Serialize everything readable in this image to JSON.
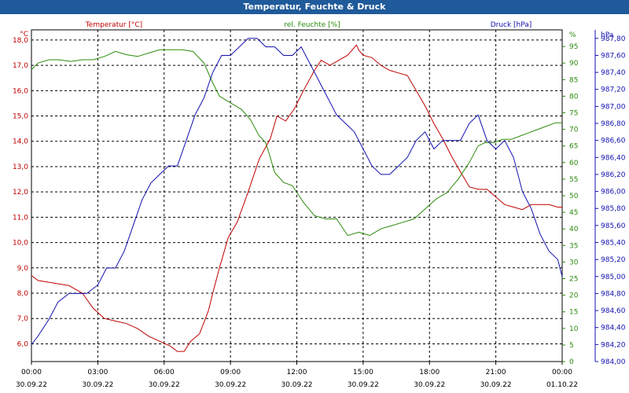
{
  "chart_data": {
    "type": "line",
    "title": "Temperatur, Feuchte & Druck",
    "x": [
      "00:00",
      "03:00",
      "06:00",
      "09:00",
      "12:00",
      "15:00",
      "18:00",
      "21:00",
      "00:00"
    ],
    "x_dates": [
      "30.09.22",
      "30.09.22",
      "30.09.22",
      "30.09.22",
      "30.09.22",
      "30.09.22",
      "30.09.22",
      "30.09.22",
      "01.10.22"
    ],
    "grid": true,
    "axes": {
      "temperature": {
        "label": "Temperatur [°C]",
        "unit": "°C",
        "color": "#c00000",
        "ylim": [
          5.3,
          18.4
        ],
        "ticks": [
          "18,0",
          "17,0",
          "16,0",
          "15,0",
          "14,0",
          "13,0",
          "12,0",
          "11,0",
          "10,0",
          "9,0",
          "8,0",
          "7,0",
          "6,0"
        ],
        "tick_values": [
          18,
          17,
          16,
          15,
          14,
          13,
          12,
          11,
          10,
          9,
          8,
          7,
          6
        ]
      },
      "humidity": {
        "label": "rel. Feuchte [%]",
        "unit": "%",
        "color": "#2a8a0a",
        "ylim": [
          0,
          100
        ],
        "ticks": [
          "95",
          "90",
          "85",
          "80",
          "75",
          "70",
          "65",
          "60",
          "55",
          "50",
          "45",
          "40",
          "35",
          "30",
          "25",
          "20",
          "15",
          "10",
          "5",
          "0"
        ],
        "tick_values": [
          95,
          90,
          85,
          80,
          75,
          70,
          65,
          60,
          55,
          50,
          45,
          40,
          35,
          30,
          25,
          20,
          15,
          10,
          5,
          0
        ]
      },
      "pressure": {
        "label": "Druck [hPa]",
        "unit": "hPa",
        "color": "#1010b0",
        "ylim": [
          984.0,
          987.9
        ],
        "ticks": [
          "987,80",
          "987,60",
          "987,40",
          "987,20",
          "987,00",
          "986,80",
          "986,60",
          "986,40",
          "986,20",
          "986,00",
          "985,80",
          "985,60",
          "985,40",
          "985,20",
          "985,00",
          "984,80",
          "984,60",
          "984,40",
          "984,20",
          "984,00"
        ],
        "tick_values": [
          987.8,
          987.6,
          987.4,
          987.2,
          987.0,
          986.8,
          986.6,
          986.4,
          986.2,
          986.0,
          985.8,
          985.6,
          985.4,
          985.2,
          985.0,
          984.8,
          984.6,
          984.4,
          984.2,
          984.0
        ]
      }
    },
    "series": [
      {
        "name": "Temperatur [°C]",
        "axis": "temperature",
        "color": "#c00000",
        "points": [
          [
            0,
            8.7
          ],
          [
            0.3,
            8.5
          ],
          [
            1.0,
            8.4
          ],
          [
            1.7,
            8.3
          ],
          [
            2.3,
            8.0
          ],
          [
            2.8,
            7.4
          ],
          [
            3.3,
            7.0
          ],
          [
            3.8,
            6.9
          ],
          [
            4.3,
            6.8
          ],
          [
            4.8,
            6.6
          ],
          [
            5.3,
            6.3
          ],
          [
            5.8,
            6.1
          ],
          [
            6.3,
            5.9
          ],
          [
            6.6,
            5.7
          ],
          [
            6.9,
            5.7
          ],
          [
            7.2,
            6.1
          ],
          [
            7.6,
            6.4
          ],
          [
            8.0,
            7.3
          ],
          [
            8.2,
            8.0
          ],
          [
            8.5,
            9.0
          ],
          [
            8.9,
            10.2
          ],
          [
            9.3,
            10.8
          ],
          [
            9.8,
            12.0
          ],
          [
            10.3,
            13.3
          ],
          [
            10.8,
            14.1
          ],
          [
            11.1,
            15.0
          ],
          [
            11.5,
            14.8
          ],
          [
            11.9,
            15.3
          ],
          [
            12.3,
            16.0
          ],
          [
            12.8,
            16.8
          ],
          [
            13.1,
            17.2
          ],
          [
            13.5,
            17.0
          ],
          [
            13.9,
            17.2
          ],
          [
            14.3,
            17.4
          ],
          [
            14.7,
            17.8
          ],
          [
            14.8,
            17.6
          ],
          [
            15.0,
            17.4
          ],
          [
            15.4,
            17.3
          ],
          [
            15.8,
            17.0
          ],
          [
            16.2,
            16.8
          ],
          [
            16.6,
            16.7
          ],
          [
            17.0,
            16.6
          ],
          [
            17.4,
            16.0
          ],
          [
            17.8,
            15.4
          ],
          [
            18.2,
            14.7
          ],
          [
            18.6,
            14.1
          ],
          [
            19.0,
            13.4
          ],
          [
            19.4,
            12.8
          ],
          [
            19.8,
            12.2
          ],
          [
            20.2,
            12.1
          ],
          [
            20.6,
            12.1
          ],
          [
            21.0,
            11.8
          ],
          [
            21.4,
            11.5
          ],
          [
            21.8,
            11.4
          ],
          [
            22.2,
            11.3
          ],
          [
            22.6,
            11.5
          ],
          [
            23.0,
            11.5
          ],
          [
            23.4,
            11.5
          ],
          [
            23.8,
            11.4
          ],
          [
            24.0,
            11.4
          ]
        ]
      },
      {
        "name": "rel. Feuchte [%]",
        "axis": "humidity",
        "color": "#2a8a0a",
        "points": [
          [
            0,
            88
          ],
          [
            0.3,
            90
          ],
          [
            0.8,
            91
          ],
          [
            1.2,
            91
          ],
          [
            1.8,
            90.5
          ],
          [
            2.3,
            91
          ],
          [
            2.8,
            91
          ],
          [
            3.3,
            92
          ],
          [
            3.8,
            93.5
          ],
          [
            4.3,
            92.5
          ],
          [
            4.8,
            92
          ],
          [
            5.3,
            93
          ],
          [
            5.8,
            94
          ],
          [
            6.3,
            94
          ],
          [
            6.8,
            94
          ],
          [
            7.3,
            93.5
          ],
          [
            7.8,
            90
          ],
          [
            8.2,
            84
          ],
          [
            8.5,
            80
          ],
          [
            9.0,
            78
          ],
          [
            9.5,
            76
          ],
          [
            9.9,
            73
          ],
          [
            10.3,
            68
          ],
          [
            10.6,
            66
          ],
          [
            11.0,
            57
          ],
          [
            11.4,
            54
          ],
          [
            11.8,
            53
          ],
          [
            12.3,
            48
          ],
          [
            12.8,
            44
          ],
          [
            13.3,
            43
          ],
          [
            13.8,
            43
          ],
          [
            14.3,
            38
          ],
          [
            14.8,
            39
          ],
          [
            15.3,
            38
          ],
          [
            15.8,
            40
          ],
          [
            16.3,
            41
          ],
          [
            16.8,
            42
          ],
          [
            17.3,
            43
          ],
          [
            17.8,
            46
          ],
          [
            18.3,
            49
          ],
          [
            18.8,
            51
          ],
          [
            19.3,
            55
          ],
          [
            19.8,
            60
          ],
          [
            20.2,
            65
          ],
          [
            20.5,
            66
          ],
          [
            20.9,
            66
          ],
          [
            21.3,
            67
          ],
          [
            21.7,
            67
          ],
          [
            22.1,
            68
          ],
          [
            22.5,
            69
          ],
          [
            22.9,
            70
          ],
          [
            23.3,
            71
          ],
          [
            23.7,
            72
          ],
          [
            24.0,
            72
          ]
        ]
      },
      {
        "name": "Druck [hPa]",
        "axis": "pressure",
        "color": "#1010b0",
        "points": [
          [
            0,
            984.2
          ],
          [
            0.3,
            984.3
          ],
          [
            0.8,
            984.5
          ],
          [
            1.2,
            984.7
          ],
          [
            1.7,
            984.8
          ],
          [
            2.1,
            984.8
          ],
          [
            2.5,
            984.8
          ],
          [
            3.0,
            984.9
          ],
          [
            3.4,
            985.1
          ],
          [
            3.8,
            985.1
          ],
          [
            4.2,
            985.3
          ],
          [
            4.6,
            985.6
          ],
          [
            5.0,
            985.9
          ],
          [
            5.4,
            986.1
          ],
          [
            5.8,
            986.2
          ],
          [
            6.2,
            986.3
          ],
          [
            6.6,
            986.3
          ],
          [
            7.0,
            986.6
          ],
          [
            7.4,
            986.9
          ],
          [
            7.8,
            987.1
          ],
          [
            8.2,
            987.4
          ],
          [
            8.6,
            987.6
          ],
          [
            9.0,
            987.6
          ],
          [
            9.4,
            987.7
          ],
          [
            9.8,
            987.8
          ],
          [
            10.2,
            987.8
          ],
          [
            10.6,
            987.7
          ],
          [
            11.0,
            987.7
          ],
          [
            11.4,
            987.6
          ],
          [
            11.8,
            987.6
          ],
          [
            12.2,
            987.7
          ],
          [
            12.6,
            987.5
          ],
          [
            13.0,
            987.3
          ],
          [
            13.4,
            987.1
          ],
          [
            13.8,
            986.9
          ],
          [
            14.2,
            986.8
          ],
          [
            14.6,
            986.7
          ],
          [
            15.0,
            986.5
          ],
          [
            15.4,
            986.3
          ],
          [
            15.8,
            986.2
          ],
          [
            16.2,
            986.2
          ],
          [
            16.6,
            986.3
          ],
          [
            17.0,
            986.4
          ],
          [
            17.4,
            986.6
          ],
          [
            17.8,
            986.7
          ],
          [
            18.2,
            986.5
          ],
          [
            18.6,
            986.6
          ],
          [
            19.0,
            986.6
          ],
          [
            19.4,
            986.6
          ],
          [
            19.8,
            986.8
          ],
          [
            20.2,
            986.9
          ],
          [
            20.6,
            986.6
          ],
          [
            21.0,
            986.5
          ],
          [
            21.4,
            986.6
          ],
          [
            21.8,
            986.4
          ],
          [
            22.2,
            986.0
          ],
          [
            22.6,
            985.8
          ],
          [
            23.0,
            985.5
          ],
          [
            23.4,
            985.3
          ],
          [
            23.8,
            985.2
          ],
          [
            24.0,
            985.0
          ]
        ]
      }
    ]
  }
}
